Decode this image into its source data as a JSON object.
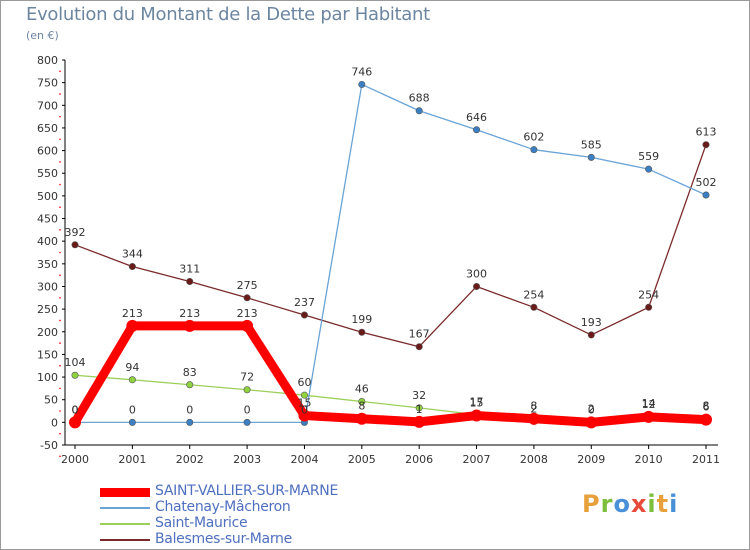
{
  "title": "Evolution du Montant de la Dette par Habitant",
  "subtitle": "(en €)",
  "logo": {
    "text": "Proxiti",
    "letter_colors": [
      "#e8a13a",
      "#7bbf3c",
      "#4a90d9",
      "#e84a3a",
      "#7bbf3c",
      "#e8a13a",
      "#4a90d9"
    ]
  },
  "chart_data": {
    "type": "line",
    "x": [
      2000,
      2001,
      2002,
      2003,
      2004,
      2005,
      2006,
      2007,
      2008,
      2009,
      2010,
      2011
    ],
    "ylim": [
      -50,
      800
    ],
    "ytick_step": 50,
    "grid": false,
    "legend_position": "bottom-left",
    "series": [
      {
        "name": "SAINT-VALLIER-SUR-MARNE",
        "color": "#ff0000",
        "marker_color": "#ff0000",
        "values": [
          0,
          213,
          213,
          213,
          15,
          8,
          1,
          15,
          8,
          0,
          12,
          6
        ],
        "labels": [
          "0",
          "213",
          "213",
          "213",
          "15",
          "8",
          "1",
          "15",
          "8",
          "0",
          "12",
          "6"
        ]
      },
      {
        "name": "Chatenay-Mâcheron",
        "color": "#6aa3d6",
        "marker_color": "#3b7fc4",
        "values": [
          0,
          0,
          0,
          0,
          0,
          746,
          688,
          646,
          602,
          585,
          559,
          502
        ],
        "labels": [
          "0",
          "0",
          "0",
          "0",
          "0",
          "746",
          "688",
          "646",
          "602",
          "585",
          "559",
          "502"
        ]
      },
      {
        "name": "Saint-Maurice",
        "color": "#9ccf5a",
        "marker_color": "#8fd43f",
        "values": [
          104,
          94,
          83,
          72,
          60,
          46,
          32,
          17,
          2,
          2,
          14,
          8
        ],
        "labels": [
          "104",
          "94",
          "83",
          "72",
          "60",
          "46",
          "32",
          "17",
          "2",
          "2",
          "14",
          "8"
        ]
      },
      {
        "name": "Balesmes-sur-Marne",
        "color": "#7a2a2a",
        "marker_color": "#6b1a1a",
        "values": [
          392,
          344,
          311,
          275,
          237,
          199,
          167,
          300,
          254,
          193,
          254,
          613
        ],
        "labels": [
          "392",
          "344",
          "311",
          "275",
          "237",
          "199",
          "167",
          "300",
          "254",
          "193",
          "254",
          "613"
        ]
      }
    ]
  }
}
